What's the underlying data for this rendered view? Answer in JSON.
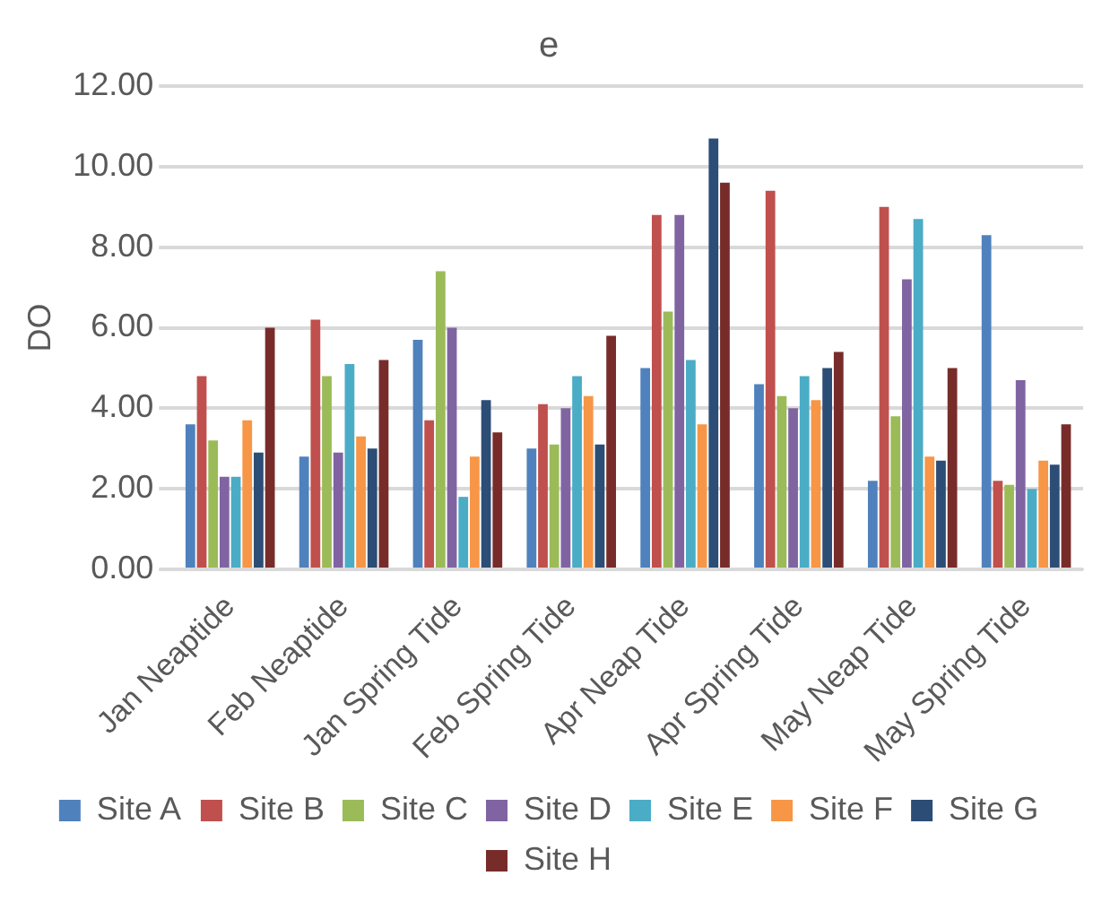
{
  "chart_data": {
    "type": "bar",
    "title": "e",
    "ylabel": "DO",
    "categories": [
      "Jan Neaptide",
      "Feb Neaptide",
      "Jan Spring Tide",
      "Feb Spring Tide",
      "Apr Neap Tide",
      "Apr Spring Tide",
      "May Neap Tide",
      "May Spring Tide"
    ],
    "series": [
      {
        "name": "Site A",
        "color": "#4f81bd",
        "values": [
          3.6,
          2.8,
          5.7,
          3.0,
          5.0,
          4.6,
          2.2,
          8.3
        ]
      },
      {
        "name": "Site B",
        "color": "#c0504d",
        "values": [
          4.8,
          6.2,
          3.7,
          4.1,
          8.8,
          9.4,
          9.0,
          2.2
        ]
      },
      {
        "name": "Site C",
        "color": "#9bbb59",
        "values": [
          3.2,
          4.8,
          7.4,
          3.1,
          6.4,
          4.3,
          3.8,
          2.1
        ]
      },
      {
        "name": "Site D",
        "color": "#8064a2",
        "values": [
          2.3,
          2.9,
          6.0,
          4.0,
          8.8,
          4.0,
          7.2,
          4.7
        ]
      },
      {
        "name": "Site E",
        "color": "#4bacc6",
        "values": [
          2.3,
          5.1,
          1.8,
          4.8,
          5.2,
          4.8,
          8.7,
          2.0
        ]
      },
      {
        "name": "Site F",
        "color": "#f79646",
        "values": [
          3.7,
          3.3,
          2.8,
          4.3,
          3.6,
          4.2,
          2.8,
          2.7
        ]
      },
      {
        "name": "Site G",
        "color": "#2c4d75",
        "values": [
          2.9,
          3.0,
          4.2,
          3.1,
          10.7,
          5.0,
          2.7,
          2.6
        ]
      },
      {
        "name": "Site H",
        "color": "#772c2a",
        "values": [
          6.0,
          5.2,
          3.4,
          5.8,
          9.6,
          5.4,
          5.0,
          3.6
        ]
      }
    ],
    "ylim": [
      0,
      12
    ],
    "yticks": [
      {
        "value": 0,
        "label": "0.00"
      },
      {
        "value": 2,
        "label": "2.00"
      },
      {
        "value": 4,
        "label": "4.00"
      },
      {
        "value": 6,
        "label": "6.00"
      },
      {
        "value": 8,
        "label": "8.00"
      },
      {
        "value": 10,
        "label": "10.00"
      },
      {
        "value": 12,
        "label": "12.00"
      }
    ],
    "grid": "y",
    "legend": "bottom"
  }
}
